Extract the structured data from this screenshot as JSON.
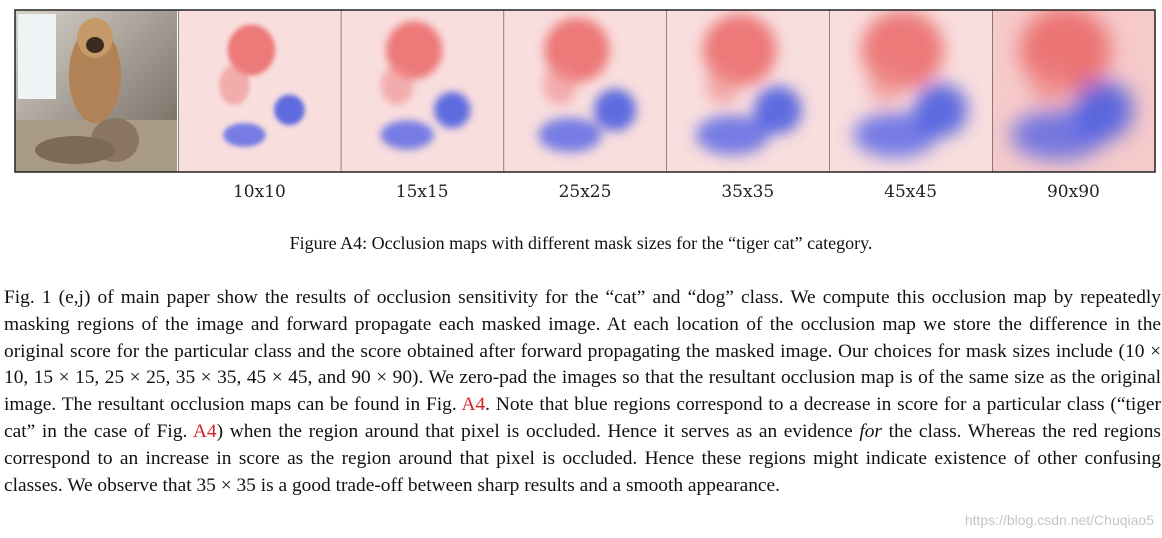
{
  "figure": {
    "panel_labels": [
      "10x10",
      "15x15",
      "25x25",
      "35x35",
      "45x45",
      "90x90"
    ],
    "caption": "Figure A4: Occlusion maps with different mask sizes for the “tiger cat” category."
  },
  "paragraph": [
    {
      "text": "Fig. 1 (e,j) of main paper show the results of occlusion sensitivity for the “cat” and “dog” class. We compute this occlusion map by repeatedly masking regions of the image and forward propagate each masked image. At each location of the occlusion map we store the difference in the original score for the particular class and the score obtained after forward propagating the masked image. Our choices for mask sizes include (10 × 10, 15 × 15, 25 × 25, 35 × 35, 45 × 45, and 90 × 90). We zero-pad the images so that the resultant occlusion map is of the same size as the original image. The resultant occlusion maps can be found in Fig. ",
      "style": "plain"
    },
    {
      "text": "A4",
      "style": "ref"
    },
    {
      "text": ". Note that blue regions correspond to a decrease in score for a particular class (“tiger cat” in the case of Fig. ",
      "style": "plain"
    },
    {
      "text": "A4",
      "style": "ref"
    },
    {
      "text": ") when the region around that pixel is occluded. Hence it serves as an evidence ",
      "style": "plain"
    },
    {
      "text": "for",
      "style": "italic"
    },
    {
      "text": " the class. Whereas the red regions correspond to an increase in score as the region around that pixel is occluded. Hence these regions might indicate existence of other confusing classes. We observe that 35 × 35 is a good trade-off between sharp results and a smooth appearance.",
      "style": "plain"
    }
  ],
  "watermark": "https://blog.csdn.net/Chuqiao5"
}
